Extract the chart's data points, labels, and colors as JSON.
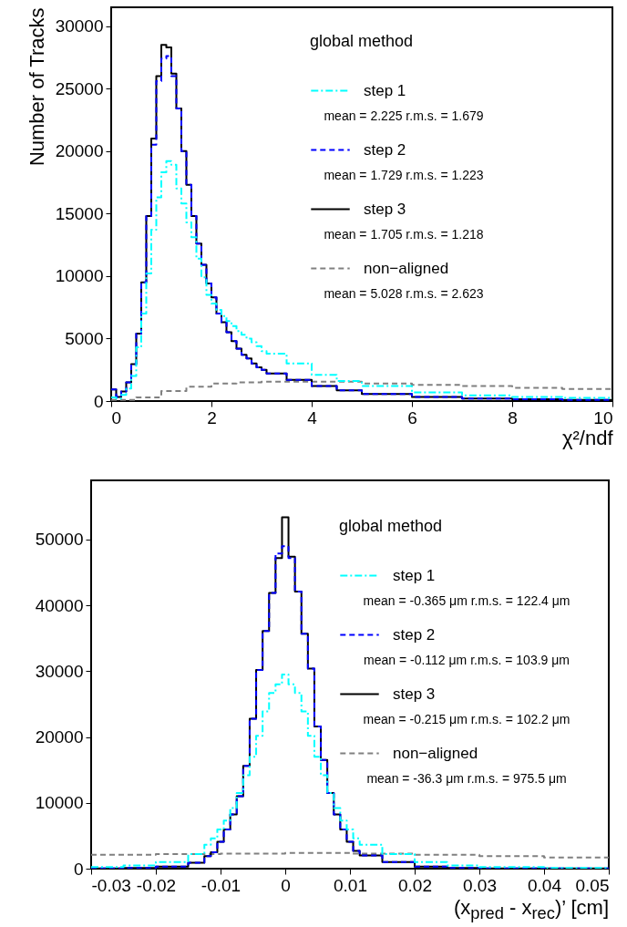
{
  "chart_data": [
    {
      "type": "step",
      "xlabel": "χ²/ndf",
      "ylabel": "Number of Tracks",
      "legend_title": "global method",
      "legend": "top right",
      "grid": false,
      "xlim": [
        0,
        10
      ],
      "ylim": [
        0,
        31500
      ],
      "xticks": [
        0,
        2,
        4,
        6,
        8,
        10
      ],
      "yticks": [
        0,
        5000,
        10000,
        15000,
        20000,
        25000,
        30000
      ],
      "annotations": [
        "mean = 2.225 r.m.s. = 1.679",
        "mean = 1.729 r.m.s. = 1.223",
        "mean = 1.705 r.m.s. = 1.218",
        "mean = 5.028 r.m.s. = 2.623"
      ],
      "series": [
        {
          "name": "step 1",
          "color": "#00ffff",
          "line_style": "dotted",
          "x": [
            0,
            0.1,
            0.2,
            0.3,
            0.4,
            0.5,
            0.6,
            0.7,
            0.8,
            0.9,
            1.0,
            1.1,
            1.2,
            1.3,
            1.4,
            1.5,
            1.6,
            1.7,
            1.8,
            1.9,
            2.0,
            2.1,
            2.2,
            2.3,
            2.4,
            2.5,
            2.6,
            2.7,
            2.8,
            2.9,
            3.0,
            3.1,
            3.5,
            4,
            4.5,
            5,
            6,
            7,
            8,
            9,
            10
          ],
          "values": [
            300,
            200,
            500,
            1000,
            2000,
            4300,
            7000,
            10200,
            13700,
            16300,
            18300,
            19200,
            18900,
            17000,
            15800,
            14300,
            13100,
            11400,
            9900,
            8500,
            7800,
            7300,
            6800,
            6400,
            6000,
            5600,
            5300,
            5000,
            4700,
            4400,
            4000,
            3800,
            3000,
            2100,
            1600,
            1200,
            700,
            450,
            320,
            250,
            200
          ]
        },
        {
          "name": "step 2",
          "color": "#0000ff",
          "line_style": "dashed",
          "x": [
            0,
            0.1,
            0.2,
            0.3,
            0.4,
            0.5,
            0.6,
            0.7,
            0.8,
            0.9,
            1.0,
            1.1,
            1.2,
            1.3,
            1.4,
            1.5,
            1.6,
            1.7,
            1.8,
            1.9,
            2.0,
            2.1,
            2.2,
            2.3,
            2.4,
            2.5,
            2.6,
            2.7,
            2.8,
            2.9,
            3.0,
            3.1,
            3.5,
            4,
            4.5,
            5,
            6,
            7,
            8,
            9,
            10
          ],
          "values": [
            930,
            320,
            760,
            1500,
            2950,
            5400,
            9500,
            14800,
            20500,
            25600,
            27400,
            27600,
            26000,
            23400,
            20000,
            17300,
            14800,
            12600,
            10900,
            9400,
            8300,
            7000,
            6300,
            5500,
            4800,
            4200,
            3700,
            3400,
            3000,
            2700,
            2500,
            2200,
            1700,
            1200,
            850,
            560,
            320,
            200,
            150,
            100,
            70
          ]
        },
        {
          "name": "step 3",
          "color": "#000000",
          "line_style": "solid",
          "x": [
            0,
            0.1,
            0.2,
            0.3,
            0.4,
            0.5,
            0.6,
            0.7,
            0.8,
            0.9,
            1.0,
            1.1,
            1.2,
            1.3,
            1.4,
            1.5,
            1.6,
            1.7,
            1.8,
            1.9,
            2.0,
            2.1,
            2.2,
            2.3,
            2.4,
            2.5,
            2.6,
            2.7,
            2.8,
            2.9,
            3.0,
            3.1,
            3.5,
            4,
            4.5,
            5,
            6,
            7,
            8,
            9,
            10
          ],
          "values": [
            930,
            320,
            760,
            1500,
            2950,
            5400,
            9500,
            14800,
            21000,
            26000,
            28500,
            28300,
            26200,
            23400,
            20000,
            17300,
            14800,
            12600,
            10900,
            9400,
            8300,
            7000,
            6300,
            5500,
            4800,
            4200,
            3700,
            3400,
            3000,
            2700,
            2500,
            2200,
            1700,
            1200,
            850,
            560,
            320,
            200,
            150,
            100,
            70
          ]
        },
        {
          "name": "non−aligned",
          "color": "#808080",
          "line_style": "dashed",
          "x": [
            0,
            0.5,
            1,
            1.5,
            2,
            2.5,
            3,
            3.5,
            4,
            5,
            6,
            7,
            8,
            9,
            10
          ],
          "values": [
            100,
            300,
            800,
            1150,
            1400,
            1500,
            1550,
            1550,
            1550,
            1400,
            1300,
            1200,
            1050,
            970,
            930
          ]
        }
      ]
    },
    {
      "type": "step",
      "xlabel": "(x$_{pred}$ - x$_{rec}$)’ [cm]",
      "legend_title": "global method",
      "legend": "top right",
      "grid": false,
      "xlim": [
        -0.03,
        0.05
      ],
      "ylim": [
        0,
        59000
      ],
      "xticks": [
        -0.03,
        -0.02,
        -0.01,
        0,
        0.01,
        0.02,
        0.03,
        0.04,
        0.05
      ],
      "yticks": [
        0,
        10000,
        20000,
        30000,
        40000,
        50000
      ],
      "annotations": [
        "mean = -0.365 μm r.m.s. = 122.4 μm",
        "mean = -0.112 μm r.m.s. = 103.9 μm",
        "mean = -0.215 μm r.m.s. = 102.2 μm",
        "mean = -36.3 μm r.m.s. = 975.5 μm"
      ],
      "series": [
        {
          "name": "step 1",
          "color": "#00ffff",
          "line_style": "dotted",
          "x": [
            -0.03,
            -0.025,
            -0.02,
            -0.015,
            -0.0125,
            -0.0115,
            -0.0105,
            -0.0095,
            -0.0085,
            -0.0075,
            -0.0065,
            -0.0055,
            -0.0045,
            -0.0035,
            -0.0025,
            -0.0015,
            -0.0005,
            0.0005,
            0.0015,
            0.0025,
            0.0035,
            0.0045,
            0.0055,
            0.0065,
            0.0075,
            0.0085,
            0.0095,
            0.0105,
            0.0115,
            0.015,
            0.02,
            0.025,
            0.03,
            0.04,
            0.05
          ],
          "values": [
            250,
            500,
            1000,
            2200,
            3650,
            4600,
            5950,
            7300,
            9200,
            11500,
            14200,
            17000,
            20200,
            23900,
            26700,
            28000,
            29500,
            28000,
            26700,
            23900,
            20200,
            17000,
            14200,
            11500,
            9200,
            7300,
            5950,
            4600,
            3650,
            2200,
            1000,
            500,
            250,
            100,
            50
          ]
        },
        {
          "name": "step 2",
          "color": "#0000ff",
          "line_style": "dashed",
          "x": [
            -0.03,
            -0.025,
            -0.02,
            -0.015,
            -0.0125,
            -0.0115,
            -0.0105,
            -0.0095,
            -0.0085,
            -0.0075,
            -0.0065,
            -0.0055,
            -0.0045,
            -0.0035,
            -0.0025,
            -0.0015,
            -0.0005,
            0.0005,
            0.0015,
            0.0025,
            0.0035,
            0.0045,
            0.0055,
            0.0065,
            0.0075,
            0.0085,
            0.0095,
            0.0105,
            0.0115,
            0.015,
            0.02,
            0.025,
            0.03,
            0.04,
            0.05
          ],
          "values": [
            50,
            100,
            300,
            900,
            1900,
            2500,
            4100,
            5950,
            8250,
            11000,
            15600,
            22800,
            30200,
            36100,
            41900,
            47900,
            49000,
            47200,
            42100,
            35700,
            30400,
            21600,
            16500,
            11500,
            8250,
            5950,
            4100,
            2700,
            2000,
            1000,
            300,
            120,
            50,
            20,
            0
          ]
        },
        {
          "name": "step 3",
          "color": "#000000",
          "line_style": "solid",
          "x": [
            -0.03,
            -0.025,
            -0.02,
            -0.015,
            -0.0125,
            -0.0115,
            -0.0105,
            -0.0095,
            -0.0085,
            -0.0075,
            -0.0065,
            -0.0055,
            -0.0045,
            -0.0035,
            -0.0025,
            -0.0015,
            -0.0005,
            0.0005,
            0.0015,
            0.0025,
            0.0035,
            0.0045,
            0.0055,
            0.0065,
            0.0075,
            0.0085,
            0.0095,
            0.0105,
            0.0115,
            0.015,
            0.02,
            0.025,
            0.03,
            0.04,
            0.05
          ],
          "values": [
            50,
            100,
            300,
            900,
            1900,
            2500,
            4100,
            5950,
            8250,
            11000,
            15600,
            22800,
            30200,
            36100,
            41900,
            47200,
            53400,
            47400,
            42100,
            35700,
            30400,
            21600,
            16500,
            11500,
            8250,
            5950,
            4100,
            2700,
            2000,
            1000,
            300,
            120,
            50,
            20,
            0
          ]
        },
        {
          "name": "non−aligned",
          "color": "#808080",
          "line_style": "dashed",
          "x": [
            -0.03,
            -0.02,
            -0.01,
            0,
            0.01,
            0.02,
            0.03,
            0.04,
            0.05
          ],
          "values": [
            2100,
            2200,
            2300,
            2400,
            2300,
            2100,
            1900,
            1700,
            1500
          ]
        }
      ]
    }
  ]
}
